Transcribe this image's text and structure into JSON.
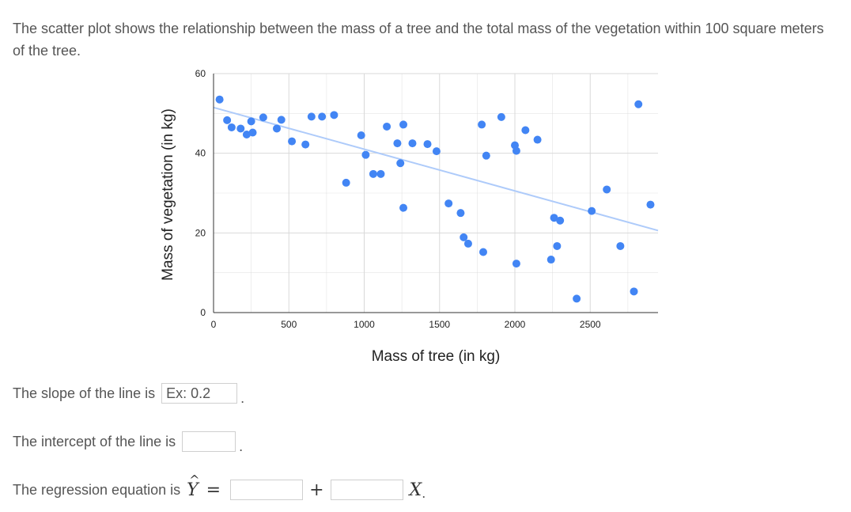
{
  "problem": {
    "intro": "The scatter plot shows the relationship between the mass of a tree and the total mass of the vegetation within 100 square meters of the tree.",
    "slope_label": "The slope of the line is",
    "slope_placeholder": "Ex: 0.2",
    "slope_value": "",
    "intercept_label": "The intercept of the line is",
    "intercept_value": "",
    "regression_label": "The regression equation is",
    "yhat_symbol": "Y",
    "equals": "=",
    "plus": "+",
    "x_symbol": "X",
    "period": "."
  },
  "colors": {
    "points": "#4285f4",
    "trendline": "#aecbfa",
    "grid": "#d9d9d9",
    "axis": "#333333"
  },
  "chart_data": {
    "type": "scatter",
    "xlabel": "Mass of tree (in kg)",
    "ylabel": "Mass of vegetation (in kg)",
    "xlim": [
      0,
      2950
    ],
    "ylim": [
      0,
      60
    ],
    "xticks": [
      0,
      500,
      1000,
      1500,
      2000,
      2500
    ],
    "yticks": [
      0,
      20,
      40,
      60
    ],
    "grid": true,
    "legend": "none",
    "trendline": {
      "x": [
        0,
        2950
      ],
      "y": [
        51.5,
        20.6
      ]
    },
    "points": [
      {
        "x": 40,
        "y": 53.5
      },
      {
        "x": 90,
        "y": 48.3
      },
      {
        "x": 120,
        "y": 46.5
      },
      {
        "x": 180,
        "y": 46.2
      },
      {
        "x": 220,
        "y": 44.7
      },
      {
        "x": 250,
        "y": 48.0
      },
      {
        "x": 260,
        "y": 45.2
      },
      {
        "x": 330,
        "y": 49.0
      },
      {
        "x": 420,
        "y": 46.2
      },
      {
        "x": 450,
        "y": 48.4
      },
      {
        "x": 520,
        "y": 43.0
      },
      {
        "x": 610,
        "y": 42.2
      },
      {
        "x": 650,
        "y": 49.2
      },
      {
        "x": 720,
        "y": 49.2
      },
      {
        "x": 800,
        "y": 49.6
      },
      {
        "x": 880,
        "y": 32.6
      },
      {
        "x": 980,
        "y": 44.5
      },
      {
        "x": 1010,
        "y": 39.6
      },
      {
        "x": 1060,
        "y": 34.8
      },
      {
        "x": 1110,
        "y": 34.8
      },
      {
        "x": 1150,
        "y": 46.7
      },
      {
        "x": 1220,
        "y": 42.5
      },
      {
        "x": 1240,
        "y": 37.5
      },
      {
        "x": 1260,
        "y": 47.2
      },
      {
        "x": 1260,
        "y": 26.3
      },
      {
        "x": 1320,
        "y": 42.5
      },
      {
        "x": 1420,
        "y": 42.3
      },
      {
        "x": 1480,
        "y": 40.5
      },
      {
        "x": 1560,
        "y": 27.4
      },
      {
        "x": 1640,
        "y": 25.0
      },
      {
        "x": 1660,
        "y": 18.9
      },
      {
        "x": 1690,
        "y": 17.3
      },
      {
        "x": 1780,
        "y": 47.2
      },
      {
        "x": 1790,
        "y": 15.2
      },
      {
        "x": 1810,
        "y": 39.4
      },
      {
        "x": 1910,
        "y": 49.1
      },
      {
        "x": 2000,
        "y": 42.0
      },
      {
        "x": 2010,
        "y": 40.6
      },
      {
        "x": 2010,
        "y": 12.3
      },
      {
        "x": 2070,
        "y": 45.8
      },
      {
        "x": 2150,
        "y": 43.4
      },
      {
        "x": 2240,
        "y": 13.3
      },
      {
        "x": 2260,
        "y": 23.8
      },
      {
        "x": 2280,
        "y": 16.7
      },
      {
        "x": 2300,
        "y": 23.1
      },
      {
        "x": 2410,
        "y": 3.5
      },
      {
        "x": 2510,
        "y": 25.5
      },
      {
        "x": 2610,
        "y": 30.9
      },
      {
        "x": 2700,
        "y": 16.7
      },
      {
        "x": 2790,
        "y": 5.3
      },
      {
        "x": 2820,
        "y": 52.3
      },
      {
        "x": 2900,
        "y": 27.1
      }
    ]
  }
}
